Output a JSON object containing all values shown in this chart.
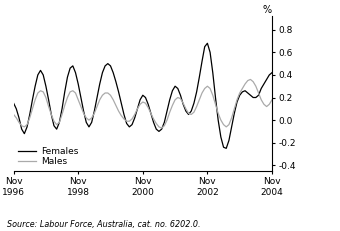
{
  "ylabel": "%",
  "source": "Source: Labour Force, Australia, cat. no. 6202.0.",
  "ylim": [
    -0.45,
    0.92
  ],
  "yticks": [
    -0.4,
    -0.2,
    0.0,
    0.2,
    0.4,
    0.6,
    0.8
  ],
  "xtick_positions": [
    0,
    24,
    48,
    72,
    96
  ],
  "xtick_labels": [
    "Nov\n1996",
    "Nov\n1998",
    "Nov\n2000",
    "Nov\n2002",
    "Nov\n2004"
  ],
  "females_color": "#000000",
  "males_color": "#aaaaaa",
  "legend_females": "Females",
  "legend_males": "Males",
  "line_width": 0.9,
  "females_data": [
    0.15,
    0.1,
    0.02,
    -0.08,
    -0.12,
    -0.06,
    0.05,
    0.18,
    0.3,
    0.4,
    0.44,
    0.4,
    0.3,
    0.18,
    0.05,
    -0.05,
    -0.08,
    -0.02,
    0.1,
    0.25,
    0.38,
    0.46,
    0.48,
    0.42,
    0.32,
    0.2,
    0.08,
    -0.02,
    -0.06,
    -0.02,
    0.08,
    0.2,
    0.32,
    0.42,
    0.48,
    0.5,
    0.48,
    0.42,
    0.34,
    0.25,
    0.15,
    0.05,
    -0.03,
    -0.06,
    -0.04,
    0.02,
    0.1,
    0.18,
    0.22,
    0.2,
    0.14,
    0.06,
    -0.02,
    -0.08,
    -0.1,
    -0.08,
    -0.02,
    0.08,
    0.18,
    0.26,
    0.3,
    0.28,
    0.22,
    0.14,
    0.08,
    0.05,
    0.08,
    0.15,
    0.25,
    0.38,
    0.52,
    0.65,
    0.68,
    0.6,
    0.42,
    0.2,
    0.0,
    -0.15,
    -0.24,
    -0.25,
    -0.18,
    -0.06,
    0.06,
    0.16,
    0.22,
    0.25,
    0.26,
    0.24,
    0.22,
    0.2,
    0.2,
    0.22,
    0.28,
    0.32,
    0.36,
    0.4,
    0.42
  ],
  "males_data": [
    0.05,
    0.02,
    -0.02,
    -0.05,
    -0.06,
    -0.04,
    0.02,
    0.1,
    0.18,
    0.24,
    0.26,
    0.25,
    0.2,
    0.12,
    0.05,
    -0.01,
    -0.04,
    -0.02,
    0.05,
    0.13,
    0.2,
    0.25,
    0.26,
    0.24,
    0.18,
    0.12,
    0.06,
    0.02,
    0.0,
    0.02,
    0.06,
    0.12,
    0.18,
    0.22,
    0.24,
    0.24,
    0.22,
    0.18,
    0.13,
    0.08,
    0.04,
    0.01,
    -0.01,
    -0.01,
    0.01,
    0.05,
    0.1,
    0.14,
    0.16,
    0.15,
    0.11,
    0.06,
    0.01,
    -0.03,
    -0.06,
    -0.07,
    -0.05,
    0.0,
    0.07,
    0.13,
    0.18,
    0.2,
    0.19,
    0.15,
    0.1,
    0.06,
    0.05,
    0.07,
    0.12,
    0.18,
    0.24,
    0.28,
    0.3,
    0.28,
    0.22,
    0.14,
    0.06,
    0.0,
    -0.04,
    -0.06,
    -0.04,
    0.02,
    0.1,
    0.18,
    0.24,
    0.28,
    0.32,
    0.35,
    0.36,
    0.34,
    0.3,
    0.24,
    0.18,
    0.14,
    0.12,
    0.14,
    0.18
  ]
}
